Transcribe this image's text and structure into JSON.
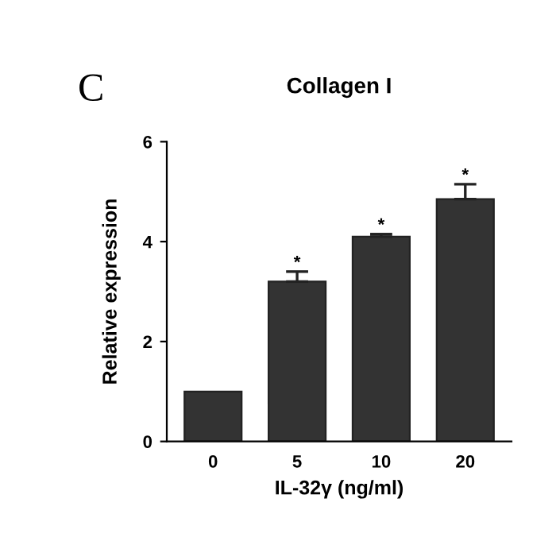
{
  "chart_data": {
    "type": "bar",
    "title": "Collagen I",
    "xlabel": "IL-32γ (ng/ml)",
    "ylabel": "Relative expression",
    "categories": [
      "0",
      "5",
      "10",
      "20"
    ],
    "values": [
      1.0,
      3.2,
      4.1,
      4.85
    ],
    "errors": [
      null,
      [
        3.2,
        3.4
      ],
      [
        4.1,
        4.15
      ],
      [
        4.85,
        5.15
      ]
    ],
    "color": "#333333",
    "ylim": [
      0,
      6
    ],
    "yticks": [
      0,
      2,
      4,
      6
    ],
    "grid": false,
    "annotations": [
      "C",
      {
        "text": "*",
        "x": "5",
        "y": 3.4
      },
      {
        "text": "*",
        "x": "10",
        "y": 4.15
      },
      {
        "text": "*",
        "x": "20",
        "y": 5.15
      }
    ]
  }
}
